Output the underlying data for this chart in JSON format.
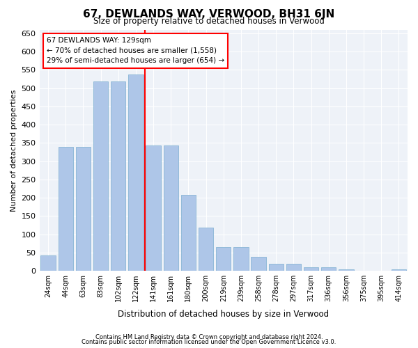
{
  "title": "67, DEWLANDS WAY, VERWOOD, BH31 6JN",
  "subtitle": "Size of property relative to detached houses in Verwood",
  "xlabel": "Distribution of detached houses by size in Verwood",
  "ylabel": "Number of detached properties",
  "categories": [
    "24sqm",
    "44sqm",
    "63sqm",
    "83sqm",
    "102sqm",
    "122sqm",
    "141sqm",
    "161sqm",
    "180sqm",
    "200sqm",
    "219sqm",
    "239sqm",
    "258sqm",
    "278sqm",
    "297sqm",
    "317sqm",
    "336sqm",
    "356sqm",
    "375sqm",
    "395sqm",
    "414sqm"
  ],
  "values": [
    42,
    340,
    340,
    518,
    518,
    537,
    343,
    343,
    207,
    118,
    65,
    65,
    38,
    20,
    20,
    10,
    10,
    4,
    0,
    0,
    4
  ],
  "bar_color": "#aec6e8",
  "bar_edge_color": "#7aaed0",
  "vline_x": 5.5,
  "vline_color": "red",
  "annotation_text": "67 DEWLANDS WAY: 129sqm\n← 70% of detached houses are smaller (1,558)\n29% of semi-detached houses are larger (654) →",
  "annotation_box_color": "white",
  "annotation_box_edge_color": "red",
  "ylim": [
    0,
    660
  ],
  "yticks": [
    0,
    50,
    100,
    150,
    200,
    250,
    300,
    350,
    400,
    450,
    500,
    550,
    600,
    650
  ],
  "bg_color": "#eef2f8",
  "grid_color": "white",
  "footer1": "Contains HM Land Registry data © Crown copyright and database right 2024.",
  "footer2": "Contains public sector information licensed under the Open Government Licence v3.0."
}
